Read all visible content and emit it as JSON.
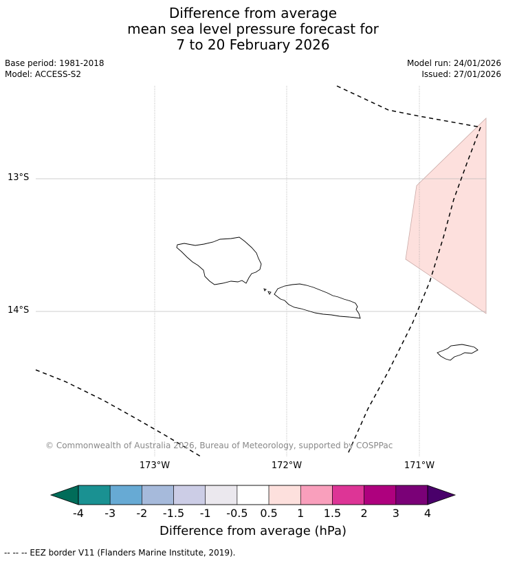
{
  "title": {
    "line1": "Difference from average",
    "line2": "mean sea level pressure forecast for",
    "line3": "7 to 20 February 2026"
  },
  "meta": {
    "base_period": "Base period: 1981-2018",
    "model": "Model: ACCESS-S2",
    "model_run": "Model run: 24/01/2026",
    "issued": "Issued: 27/01/2026"
  },
  "map": {
    "lat_labels": [
      "13°S",
      "14°S"
    ],
    "lon_labels": [
      "173°W",
      "172°W",
      "171°W"
    ],
    "copyright": "© Commonwealth of Australia 2026, Bureau of Meteorology, supported by COSPPac",
    "anomaly_fill": "#fde0dd"
  },
  "colorbar": {
    "ticks": [
      "-4",
      "-3",
      "-2",
      "-1.5",
      "-1",
      "-0.5",
      "0.5",
      "1",
      "1.5",
      "2",
      "3",
      "4"
    ],
    "colors": [
      "#1a9192",
      "#67aad4",
      "#a6badb",
      "#cccde6",
      "#ebe8ee",
      "#ffffff",
      "#fde0dd",
      "#f99fbc",
      "#dd3596",
      "#ae017e",
      "#7a0177"
    ],
    "under_color": "#016c59",
    "over_color": "#49006a",
    "label": "Difference from average (hPa)"
  },
  "footnote": "--  --  -- EEZ border V11 (Flanders Marine Institute, 2019)."
}
